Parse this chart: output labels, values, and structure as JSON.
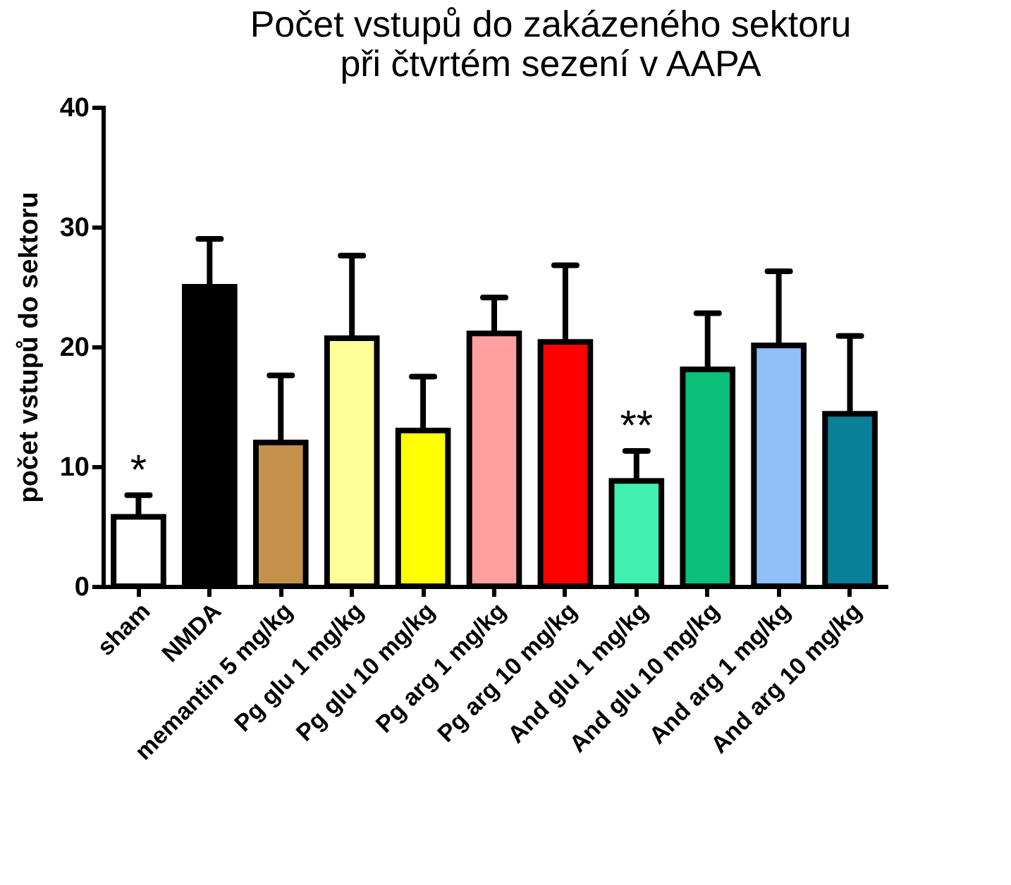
{
  "chart_data": {
    "type": "bar",
    "title": "Počet vstupů do zakázeného sektoru\npři čtvrtém sezení v AAPA",
    "ylabel": "počet vstupů do sektoru",
    "categories": [
      "sham",
      "NMDA",
      "memantin 5 mg/kg",
      "Pg glu 1 mg/kg",
      "Pg glu 10 mg/kg",
      "Pg arg 1 mg/kg",
      "Pg arg 10 mg/kg",
      "And glu 1 mg/kg",
      "And glu 10 mg/kg",
      "And arg 1 mg/kg",
      "And arg 10 mg/kg"
    ],
    "values": [
      5.8,
      25.0,
      12.0,
      20.7,
      13.0,
      21.1,
      20.4,
      8.8,
      18.1,
      20.1,
      14.4
    ],
    "errors": [
      1.8,
      4.0,
      5.6,
      6.9,
      4.5,
      3.0,
      6.4,
      2.5,
      4.7,
      6.2,
      6.5
    ],
    "colors": [
      "#ffffff",
      "#000000",
      "#c4924b",
      "#ffff99",
      "#ffff00",
      "#ff9f9f",
      "#ff0000",
      "#40f0b0",
      "#08c07a",
      "#90c0f8",
      "#0a7f98"
    ],
    "ylim": [
      0,
      40
    ],
    "yticks": [
      0,
      10,
      20,
      30,
      40
    ],
    "grid": false,
    "annotations": [
      {
        "text": "*",
        "x": "sham",
        "y": 7.6
      },
      {
        "text": "**",
        "x": "And glu 1 mg/kg",
        "y": 11.3
      }
    ]
  }
}
